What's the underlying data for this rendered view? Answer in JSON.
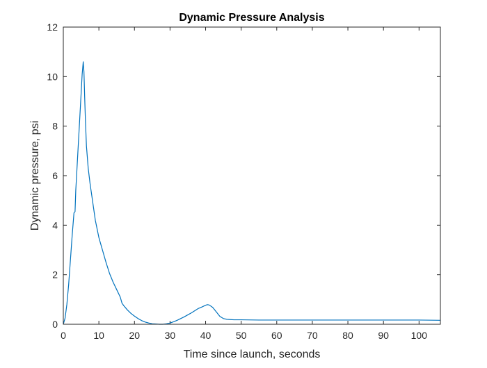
{
  "colors": {
    "series": "#0072BD",
    "axes": "#262626",
    "background": "#ffffff"
  },
  "chart_data": {
    "type": "line",
    "title": "Dynamic Pressure Analysis",
    "xlabel": "Time since launch, seconds",
    "ylabel": "Dynamic pressure, psi",
    "xlim": [
      0,
      106
    ],
    "ylim": [
      0,
      12
    ],
    "xticks": [
      "0",
      "10",
      "20",
      "30",
      "40",
      "50",
      "60",
      "70",
      "80",
      "90",
      "100"
    ],
    "yticks": [
      "0",
      "2",
      "4",
      "6",
      "8",
      "10",
      "12"
    ],
    "grid": false,
    "box": true,
    "series": [
      {
        "x": [
          0,
          0.5,
          1,
          1.5,
          2,
          2.5,
          3,
          3.3,
          3.5,
          4,
          4.5,
          5,
          5.3,
          5.6,
          5.8,
          6,
          6.2,
          6.5,
          7,
          7.5,
          8,
          8.5,
          9,
          10,
          10.8,
          11,
          12,
          13,
          14,
          15,
          16,
          16.5,
          17,
          18,
          19,
          20,
          21,
          22,
          23,
          24,
          25,
          26,
          27,
          28,
          29,
          30,
          31,
          32,
          33,
          34,
          35,
          36,
          37,
          38,
          39,
          40,
          40.5,
          41,
          42,
          43,
          44,
          45,
          46,
          47,
          48,
          50,
          55,
          60,
          65,
          70,
          75,
          80,
          85,
          90,
          95,
          100,
          106
        ],
        "y": [
          0,
          0.25,
          0.8,
          1.6,
          2.6,
          3.6,
          4.5,
          4.55,
          5.4,
          6.7,
          8.0,
          9.3,
          10.1,
          10.6,
          10.2,
          9.2,
          8.3,
          7.2,
          6.3,
          5.7,
          5.2,
          4.7,
          4.2,
          3.5,
          3.1,
          3.0,
          2.5,
          2.05,
          1.7,
          1.4,
          1.1,
          0.85,
          0.75,
          0.58,
          0.44,
          0.33,
          0.23,
          0.15,
          0.09,
          0.05,
          0.02,
          0.01,
          0.0,
          0.0,
          0.02,
          0.05,
          0.1,
          0.16,
          0.23,
          0.3,
          0.38,
          0.46,
          0.55,
          0.64,
          0.7,
          0.77,
          0.79,
          0.78,
          0.68,
          0.5,
          0.32,
          0.23,
          0.2,
          0.19,
          0.18,
          0.18,
          0.17,
          0.17,
          0.17,
          0.17,
          0.17,
          0.17,
          0.17,
          0.17,
          0.17,
          0.17,
          0.16
        ]
      }
    ]
  }
}
